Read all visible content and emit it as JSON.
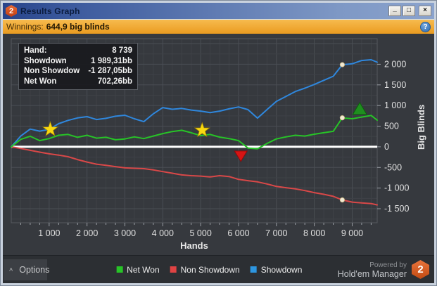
{
  "window": {
    "title": "Results Graph",
    "badge": "2",
    "controls": {
      "minimize": "_",
      "maximize": "□",
      "close": "×"
    }
  },
  "winnings_bar": {
    "label": "Winnings:",
    "value": "644,9 big blinds",
    "help_icon": "?"
  },
  "tooltip": {
    "rows": [
      {
        "label": "Hand:",
        "value": "8 739"
      },
      {
        "label": "Showdown",
        "value": "1 989,31bb"
      },
      {
        "label": "Non Showdow",
        "value": "-1 287,05bb"
      },
      {
        "label": "Net Won",
        "value": "702,26bb"
      }
    ]
  },
  "chart_data": {
    "type": "line",
    "title": "",
    "xlabel": "Hands",
    "ylabel": "Big Blinds",
    "xlim": [
      0,
      9660
    ],
    "ylim": [
      -1840,
      2620
    ],
    "grid": {
      "minor_x_step": 250,
      "major_x_step": 1000,
      "minor_y_step": 250,
      "major_y_step": 500,
      "grid_on": true
    },
    "zero_line_color": "#ffffff",
    "x_ticks": [
      1000,
      2000,
      3000,
      4000,
      5000,
      6000,
      7000,
      8000,
      9000
    ],
    "x_tick_labels": [
      "1 000",
      "2 000",
      "3 000",
      "4 000",
      "5 000",
      "6 000",
      "7 000",
      "8 000",
      "9 000"
    ],
    "y_ticks": [
      2000,
      1500,
      1000,
      500,
      0,
      -500,
      -1000,
      -1500
    ],
    "y_tick_labels": [
      "2 000",
      "1 500",
      "1 000",
      "500",
      "0",
      "-500",
      "-1 000",
      "-1 500"
    ],
    "x": [
      0,
      250,
      500,
      750,
      1000,
      1250,
      1500,
      1750,
      2000,
      2250,
      2500,
      2750,
      3000,
      3250,
      3500,
      3750,
      4000,
      4250,
      4500,
      4750,
      5000,
      5250,
      5500,
      5750,
      6000,
      6250,
      6500,
      6750,
      7000,
      7250,
      7500,
      7750,
      8000,
      8250,
      8500,
      8739,
      9000,
      9250,
      9500,
      9660
    ],
    "series": [
      {
        "name": "Net Won",
        "color": "#27c427",
        "values": [
          0,
          180,
          255,
          150,
          200,
          280,
          300,
          230,
          280,
          210,
          230,
          170,
          190,
          240,
          200,
          260,
          320,
          370,
          400,
          340,
          270,
          300,
          235,
          200,
          150,
          -30,
          -50,
          80,
          190,
          240,
          280,
          260,
          305,
          340,
          375,
          702,
          680,
          720,
          760,
          645
        ]
      },
      {
        "name": "Non Showdown",
        "color": "#d94848",
        "values": [
          0,
          -40,
          -85,
          -130,
          -170,
          -200,
          -240,
          -310,
          -370,
          -420,
          -450,
          -480,
          -510,
          -520,
          -530,
          -560,
          -600,
          -640,
          -680,
          -700,
          -710,
          -730,
          -700,
          -720,
          -790,
          -820,
          -850,
          -900,
          -960,
          -990,
          -1020,
          -1060,
          -1110,
          -1150,
          -1200,
          -1287,
          -1340,
          -1360,
          -1375,
          -1407
        ]
      },
      {
        "name": "Showdown",
        "color": "#2f87dd",
        "values": [
          0,
          260,
          430,
          380,
          420,
          560,
          640,
          700,
          730,
          660,
          690,
          740,
          765,
          680,
          610,
          800,
          950,
          910,
          930,
          890,
          865,
          830,
          865,
          920,
          965,
          900,
          695,
          900,
          1100,
          1220,
          1340,
          1420,
          1510,
          1610,
          1710,
          1989,
          2010,
          2090,
          2110,
          2050
        ]
      }
    ],
    "markers": {
      "stars": [
        {
          "hands": 1030,
          "value": 420
        },
        {
          "hands": 5040,
          "value": 400
        }
      ],
      "triangle_down": {
        "hands": 6060,
        "value": -220,
        "color": "#d61414"
      },
      "triangle_up": {
        "hands": 9200,
        "value": 920,
        "color": "#1f8f1f"
      },
      "hover_dot_hand": 8739,
      "hover_dot_values": {
        "Showdown": 1989.31,
        "Non Showdown": -1287.05,
        "Net Won": 702.26
      }
    },
    "legend_position": "bottom-center"
  },
  "legend": [
    {
      "label": "Net Won",
      "color": "#27c427"
    },
    {
      "label": "Non Showdown",
      "color": "#e04343"
    },
    {
      "label": "Showdown",
      "color": "#2d96e0"
    }
  ],
  "footer": {
    "options_label": "Options",
    "options_chevron": "^",
    "powered_by": "Powered by",
    "brand": "Hold'em Manager",
    "brand_badge": "2"
  }
}
